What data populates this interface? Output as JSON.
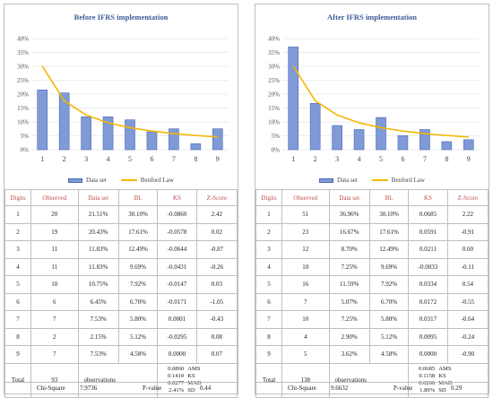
{
  "panels": [
    {
      "title": "Before IFRS implementation",
      "legend": {
        "bar": "Data set",
        "line": "Benford Law"
      },
      "headers": [
        "Digits",
        "Observed",
        "Data set",
        "BL",
        "KS",
        "Z-Score"
      ],
      "rows": [
        [
          "1",
          "20",
          "21.51%",
          "30.10%",
          "-0.0860",
          "2.42"
        ],
        [
          "2",
          "19",
          "20.43%",
          "17.61%",
          "-0.0578",
          "0.02"
        ],
        [
          "3",
          "11",
          "11.83%",
          "12.49%",
          "-0.0644",
          "-0.87"
        ],
        [
          "4",
          "11",
          "11.83%",
          "9.69%",
          "-0.0431",
          "-0.26"
        ],
        [
          "5",
          "10",
          "10.75%",
          "7.92%",
          "-0.0147",
          "0.03"
        ],
        [
          "6",
          "6",
          "6.45%",
          "6.70%",
          "-0.0171",
          "-1.05"
        ],
        [
          "7",
          "7",
          "7.53%",
          "5.80%",
          "0.0001",
          "-0.43"
        ],
        [
          "8",
          "2",
          "2.15%",
          "5.12%",
          "-0.0295",
          "0.08"
        ],
        [
          "9",
          "7",
          "7.53%",
          "4.58%",
          "0.0000",
          "0.07"
        ]
      ],
      "total": {
        "label": "Total",
        "count": "93",
        "word": "observations",
        "summary": [
          [
            "0.0860",
            "AMS"
          ],
          [
            "0.1410",
            "KS"
          ],
          [
            "0.0277",
            "MAD"
          ],
          [
            "2.41%",
            "SD"
          ]
        ]
      },
      "footer": {
        "chi_label": "Chi-Square",
        "chi_value": "7.9736",
        "p_label": "P-value",
        "p_value": "0.44"
      }
    },
    {
      "title": "After IFRS implementation",
      "legend": {
        "bar": "Data set",
        "line": "Benford Law"
      },
      "headers": [
        "Digits",
        "Observed",
        "Data set",
        "BL",
        "KS",
        "Z-Score"
      ],
      "rows": [
        [
          "1",
          "51",
          "36.96%",
          "30.10%",
          "0.0685",
          "2.22"
        ],
        [
          "2",
          "23",
          "16.67%",
          "17.61%",
          "0.0591",
          "-0.91"
        ],
        [
          "3",
          "12",
          "8.70%",
          "12.49%",
          "0.0211",
          "0.60"
        ],
        [
          "4",
          "10",
          "7.25%",
          "9.69%",
          "-0.0033",
          "-0.11"
        ],
        [
          "5",
          "16",
          "11.59%",
          "7.92%",
          "0.0334",
          "0.54"
        ],
        [
          "6",
          "7",
          "5.07%",
          "6.70%",
          "0.0172",
          "-0.55"
        ],
        [
          "7",
          "10",
          "7.25%",
          "5.80%",
          "0.0317",
          "-0.64"
        ],
        [
          "8",
          "4",
          "2.90%",
          "5.12%",
          "0.0095",
          "-0.24"
        ],
        [
          "9",
          "5",
          "3.62%",
          "4.58%",
          "0.0000",
          "-0.90"
        ]
      ],
      "total": {
        "label": "Total",
        "count": "138",
        "word": "observations",
        "summary": [
          [
            "0.0685",
            "AMS"
          ],
          [
            "0.1158",
            "KS"
          ],
          [
            "0.0266",
            "MAD"
          ],
          [
            "1.89%",
            "SD"
          ]
        ]
      },
      "footer": {
        "chi_label": "Chi-Square",
        "chi_value": "9.6632",
        "p_label": "P-value",
        "p_value": "0.29"
      }
    }
  ],
  "chart_data": [
    {
      "type": "bar",
      "title": "Before IFRS implementation",
      "categories": [
        "1",
        "2",
        "3",
        "4",
        "5",
        "6",
        "7",
        "8",
        "9"
      ],
      "series": [
        {
          "name": "Data set",
          "kind": "bar",
          "values": [
            21.51,
            20.43,
            11.83,
            11.83,
            10.75,
            6.45,
            7.53,
            2.15,
            7.53
          ]
        },
        {
          "name": "Benford Law",
          "kind": "line",
          "values": [
            30.1,
            17.61,
            12.49,
            9.69,
            7.92,
            6.7,
            5.8,
            5.12,
            4.58
          ]
        }
      ],
      "ylim": [
        0,
        40
      ],
      "yticks": [
        "0%",
        "5%",
        "10%",
        "15%",
        "20%",
        "25%",
        "30%",
        "35%",
        "40%"
      ],
      "grid": true,
      "legend_position": "bottom",
      "colors": {
        "bar": "#7f9ad6",
        "bar_border": "#4a67b5",
        "line": "#f2b705"
      }
    },
    {
      "type": "bar",
      "title": "After IFRS implementation",
      "categories": [
        "1",
        "2",
        "3",
        "4",
        "5",
        "6",
        "7",
        "8",
        "9"
      ],
      "series": [
        {
          "name": "Data set",
          "kind": "bar",
          "values": [
            36.96,
            16.67,
            8.7,
            7.25,
            11.59,
            5.07,
            7.25,
            2.9,
            3.62
          ]
        },
        {
          "name": "Benford Law",
          "kind": "line",
          "values": [
            30.1,
            17.61,
            12.49,
            9.69,
            7.92,
            6.7,
            5.8,
            5.12,
            4.58
          ]
        }
      ],
      "ylim": [
        0,
        40
      ],
      "yticks": [
        "0%",
        "5%",
        "10%",
        "15%",
        "20%",
        "25%",
        "30%",
        "35%",
        "40%"
      ],
      "grid": true,
      "legend_position": "bottom",
      "colors": {
        "bar": "#7f9ad6",
        "bar_border": "#4a67b5",
        "line": "#f2b705"
      }
    }
  ]
}
